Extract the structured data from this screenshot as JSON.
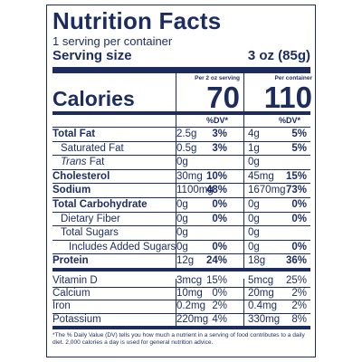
{
  "label": {
    "title": "Nutrition Facts",
    "servings": "1 serving per container",
    "serving_size_label": "Serving size",
    "serving_size_value": "3 oz (85g)",
    "calories_label": "Calories",
    "col1_header": "Per 2 oz serving",
    "col2_header": "Per container",
    "col1_calories": "70",
    "col2_calories": "110",
    "dv_header": "%DV*"
  },
  "nutrients": [
    {
      "name": "Total Fat",
      "bold": true,
      "indent": 0,
      "amt1": "2.5g",
      "dv1": "3%",
      "amt2": "4g",
      "dv2": "5%"
    },
    {
      "name": "Saturated Fat",
      "bold": false,
      "indent": 1,
      "amt1": "0.5g",
      "dv1": "3%",
      "amt2": "1g",
      "dv2": "5%"
    },
    {
      "name": "Trans Fat",
      "bold": false,
      "indent": 1,
      "italic_prefix": "Trans",
      "suffix": " Fat",
      "amt1": "0g",
      "dv1": "",
      "amt2": "0g",
      "dv2": ""
    },
    {
      "name": "Cholesterol",
      "bold": true,
      "indent": 0,
      "amt1": "30mg",
      "dv1": "10%",
      "amt2": "45mg",
      "dv2": "15%"
    },
    {
      "name": "Sodium",
      "bold": true,
      "indent": 0,
      "amt1": "1100mg",
      "dv1": "48%",
      "amt2": "1670mg",
      "dv2": "73%"
    },
    {
      "name": "Total Carbohydrate",
      "bold": true,
      "indent": 0,
      "amt1": "0g",
      "dv1": "0%",
      "amt2": "0g",
      "dv2": "0%"
    },
    {
      "name": "Dietary Fiber",
      "bold": false,
      "indent": 1,
      "amt1": "0g",
      "dv1": "0%",
      "amt2": "0g",
      "dv2": "0%"
    },
    {
      "name": "Total Sugars",
      "bold": false,
      "indent": 1,
      "amt1": "0g",
      "dv1": "",
      "amt2": "0g",
      "dv2": ""
    },
    {
      "name": "Includes Added Sugars",
      "bold": false,
      "indent": 2,
      "amt1": "0g",
      "dv1": "0%",
      "amt2": "0g",
      "dv2": "0%"
    },
    {
      "name": "Protein",
      "bold": true,
      "indent": 0,
      "amt1": "12g",
      "dv1": "24%",
      "amt2": "18g",
      "dv2": "36%"
    }
  ],
  "vitamins": [
    {
      "name": "Vitamin D",
      "amt1": "3mcg",
      "dv1": "15%",
      "amt2": "5mcg",
      "dv2": "25%"
    },
    {
      "name": "Calcium",
      "amt1": "10mg",
      "dv1": "0%",
      "amt2": "20mg",
      "dv2": "2%"
    },
    {
      "name": "Iron",
      "amt1": "0.2mg",
      "dv1": "2%",
      "amt2": "0.4mg",
      "dv2": "2%"
    },
    {
      "name": "Potassium",
      "amt1": "220mg",
      "dv1": "4%",
      "amt2": "330mg",
      "dv2": "8%"
    }
  ],
  "footnote": "*The % Daily Value (DV) tells you how much a nutrient in a serving of food contributes to a daily diet. 2,000 calories a day is used for general nutrition advice.",
  "colors": {
    "ink": "#1c2c5e",
    "background": "#ffffff"
  }
}
